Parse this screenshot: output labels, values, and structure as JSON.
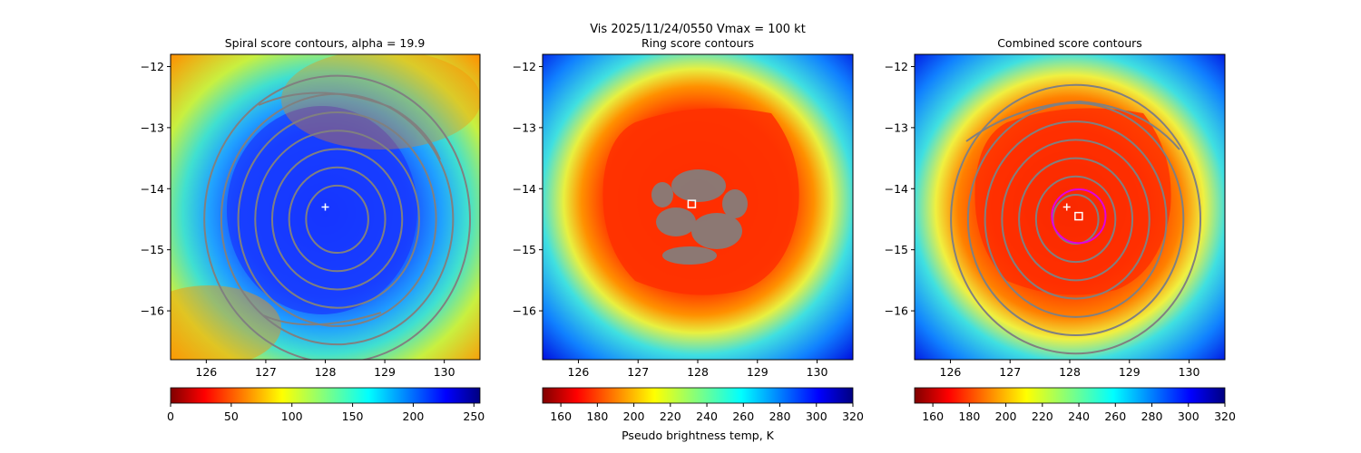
{
  "figure": {
    "suptitle_line1": "Vis  2025/11/24/0550    Vmax = 100 kt"
  },
  "colors": {
    "contour": "#808080",
    "marker": "#ffffff",
    "ring": "#e000e0"
  },
  "chart_data": [
    {
      "type": "heatmap",
      "title": "Spiral score contours, alpha = 19.9",
      "xlim": [
        125.4,
        130.6
      ],
      "ylim": [
        -16.8,
        -11.8
      ],
      "xticks": [
        126,
        127,
        128,
        129,
        130
      ],
      "yticks": [
        -12,
        -13,
        -14,
        -15,
        -16
      ],
      "xtick_labels": [
        "126",
        "127",
        "128",
        "129",
        "130"
      ],
      "ytick_labels": [
        "−12",
        "−13",
        "−14",
        "−15",
        "−16"
      ],
      "center": [
        128.2,
        -14.5
      ],
      "contour_radii_deg": [
        0.55,
        0.85,
        1.15,
        1.45,
        1.75,
        2.05,
        2.35
      ],
      "cross_marker": [
        128.0,
        -14.3
      ],
      "colorbar": {
        "cmap": "jet_r",
        "range": [
          0,
          255
        ],
        "ticks": [
          0,
          50,
          100,
          150,
          200,
          250
        ],
        "tick_labels": [
          "0",
          "50",
          "100",
          "150",
          "200",
          "250"
        ],
        "label": ""
      }
    },
    {
      "type": "heatmap",
      "title": "Ring score contours",
      "xlim": [
        125.4,
        130.6
      ],
      "ylim": [
        -16.8,
        -11.8
      ],
      "xticks": [
        126,
        127,
        128,
        129,
        130
      ],
      "yticks": [
        -12,
        -13,
        -14,
        -15,
        -16
      ],
      "xtick_labels": [
        "126",
        "127",
        "128",
        "129",
        "130"
      ],
      "ytick_labels": [
        "−12",
        "−13",
        "−14",
        "−15",
        "−16"
      ],
      "square_marker": [
        127.9,
        -14.25
      ],
      "colorbar": {
        "cmap": "jet",
        "range": [
          150,
          320
        ],
        "ticks": [
          160,
          180,
          200,
          220,
          240,
          260,
          280,
          300,
          320
        ],
        "tick_labels": [
          "160",
          "180",
          "200",
          "220",
          "240",
          "260",
          "280",
          "300",
          "320"
        ],
        "label": "Pseudo brightness temp, K"
      }
    },
    {
      "type": "heatmap",
      "title": "Combined score contours",
      "xlim": [
        125.4,
        130.6
      ],
      "ylim": [
        -16.8,
        -11.8
      ],
      "xticks": [
        126,
        127,
        128,
        129,
        130
      ],
      "yticks": [
        -12,
        -13,
        -14,
        -15,
        -16
      ],
      "xtick_labels": [
        "126",
        "127",
        "128",
        "129",
        "130"
      ],
      "ytick_labels": [
        "−12",
        "−13",
        "−14",
        "−15",
        "−16"
      ],
      "center": [
        128.1,
        -14.5
      ],
      "contour_radii_deg": [
        0.4,
        0.7,
        1.0,
        1.3,
        1.6,
        1.9,
        2.2
      ],
      "cross_marker": [
        127.95,
        -14.3
      ],
      "square_marker": [
        128.15,
        -14.45
      ],
      "circle_marker": {
        "center": [
          128.15,
          -14.45
        ],
        "radius_deg": 0.45
      },
      "colorbar": {
        "cmap": "jet",
        "range": [
          150,
          320
        ],
        "ticks": [
          160,
          180,
          200,
          220,
          240,
          260,
          280,
          300,
          320
        ],
        "tick_labels": [
          "160",
          "180",
          "200",
          "220",
          "240",
          "260",
          "280",
          "300",
          "320"
        ],
        "label": ""
      }
    }
  ]
}
